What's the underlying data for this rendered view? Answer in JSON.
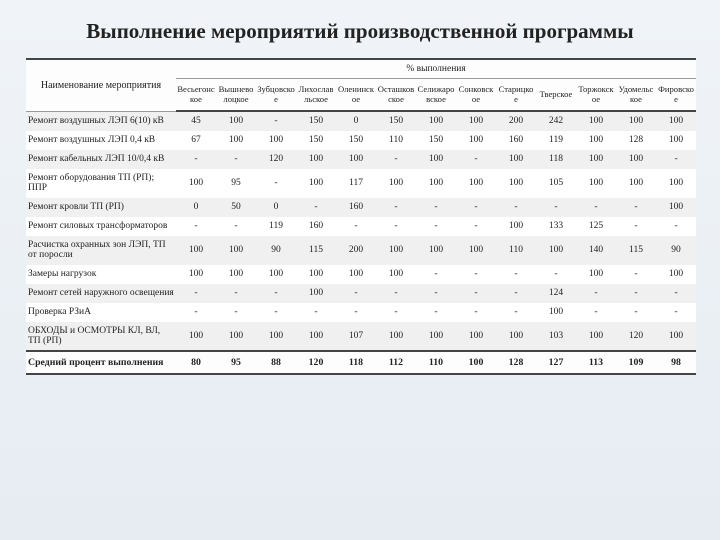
{
  "title": "Выполнение мероприятий производственной программы",
  "header": {
    "name_col": "Наименование мероприятия",
    "percent_group": "% выполнения"
  },
  "columns": [
    "Весьегонское",
    "Вышневолоцкое",
    "Зубцовское",
    "Лихославльское",
    "Оленинское",
    "Осташковское",
    "Селижаровское",
    "Сонковское",
    "Старицкое",
    "Тверское",
    "Торжокское",
    "Удомельское",
    "Фировское"
  ],
  "rows": [
    {
      "name": "Ремонт воздушных ЛЭП 6(10) кВ",
      "v": [
        "45",
        "100",
        "-",
        "150",
        "0",
        "150",
        "100",
        "100",
        "200",
        "242",
        "100",
        "100",
        "100"
      ]
    },
    {
      "name": "Ремонт воздушных ЛЭП 0,4 кВ",
      "v": [
        "67",
        "100",
        "100",
        "150",
        "150",
        "110",
        "150",
        "100",
        "160",
        "119",
        "100",
        "128",
        "100"
      ]
    },
    {
      "name": "Ремонт кабельных ЛЭП 10/0,4 кВ",
      "v": [
        "-",
        "-",
        "120",
        "100",
        "100",
        "-",
        "100",
        "-",
        "100",
        "118",
        "100",
        "100",
        "-"
      ]
    },
    {
      "name": "Ремонт  оборудования ТП (РП); ППР",
      "v": [
        "100",
        "95",
        "-",
        "100",
        "117",
        "100",
        "100",
        "100",
        "100",
        "105",
        "100",
        "100",
        "100"
      ]
    },
    {
      "name": "Ремонт кровли ТП (РП)",
      "v": [
        "0",
        "50",
        "0",
        "-",
        "160",
        "-",
        "-",
        "-",
        "-",
        "-",
        "-",
        "-",
        "100"
      ]
    },
    {
      "name": "Ремонт силовых трансформаторов",
      "v": [
        "-",
        "-",
        "119",
        "160",
        "-",
        "-",
        "-",
        "-",
        "100",
        "133",
        "125",
        "-",
        "-"
      ]
    },
    {
      "name": "Расчистка охранных зон ЛЭП, ТП от поросли",
      "v": [
        "100",
        "100",
        "90",
        "115",
        "200",
        "100",
        "100",
        "100",
        "110",
        "100",
        "140",
        "115",
        "90"
      ]
    },
    {
      "name": "Замеры нагрузок",
      "v": [
        "100",
        "100",
        "100",
        "100",
        "100",
        "100",
        "-",
        "-",
        "-",
        "-",
        "100",
        "-",
        "100"
      ]
    },
    {
      "name": "Ремонт сетей наружного освещения",
      "v": [
        "-",
        "-",
        "-",
        "100",
        "-",
        "-",
        "-",
        "-",
        "-",
        "124",
        "-",
        "-",
        "-"
      ]
    },
    {
      "name": "Проверка РЗиА",
      "v": [
        "-",
        "-",
        "-",
        "-",
        "-",
        "-",
        "-",
        "-",
        "-",
        "100",
        "-",
        "-",
        "-"
      ]
    },
    {
      "name": "ОБХОДЫ и ОСМОТРЫ  КЛ, ВЛ, ТП (РП)",
      "v": [
        "100",
        "100",
        "100",
        "100",
        "107",
        "100",
        "100",
        "100",
        "100",
        "103",
        "100",
        "120",
        "100"
      ]
    }
  ],
  "footer": {
    "name": "Средний процент выполнения",
    "v": [
      "80",
      "95",
      "88",
      "120",
      "118",
      "112",
      "110",
      "100",
      "128",
      "127",
      "113",
      "109",
      "98"
    ]
  },
  "style": {
    "title_fontsize": 21,
    "body_fontsize": 9.5,
    "header_fontsize": 8.6,
    "border_color": "#444444",
    "stripe_odd_bg": "#f0f0f0",
    "stripe_even_bg": "#ffffff",
    "page_bg_top": "#f0f4f8",
    "page_bg_bottom": "#e6ecf2"
  }
}
